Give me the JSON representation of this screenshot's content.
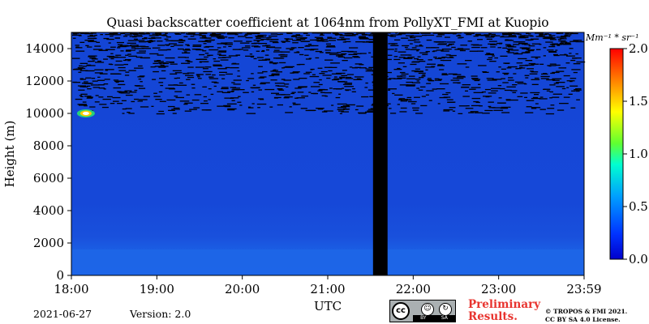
{
  "chart_data": {
    "type": "heatmap",
    "title": "Quasi backscatter coefficient at 1064nm from PollyXT_FMI at Kuopio",
    "xlabel": "UTC",
    "ylabel": "Height (m)",
    "x_ticks": [
      "18:00",
      "19:00",
      "20:00",
      "21:00",
      "22:00",
      "23:00",
      "23:59"
    ],
    "x_range_hours": [
      18.0,
      24.0
    ],
    "y_ticks": [
      0,
      2000,
      4000,
      6000,
      8000,
      10000,
      12000,
      14000
    ],
    "y_range": [
      0,
      15000
    ],
    "colorbar": {
      "unit": "Mm⁻¹ * sr⁻¹",
      "range": [
        0.0,
        2.0
      ],
      "ticks": [
        "0.0",
        "0.5",
        "1.0",
        "1.5",
        "2.0"
      ],
      "colormap": "jet"
    },
    "data_gap_hours": [
      21.53,
      21.7
    ],
    "features": {
      "boundary_layer_top_m": 1600,
      "residual_layer_top_m": 2300,
      "noise_onset_m": 10000,
      "cloud": {
        "time_hours": 18.17,
        "height_m": 10000,
        "peak_value": 2.0
      }
    },
    "background_value": 0.15,
    "grid": false
  },
  "footer": {
    "date": "2021-06-27",
    "version": "Version: 2.0",
    "preliminary": [
      "Preliminary",
      "Results."
    ],
    "copyright": [
      "© TROPOS & FMI 2021.",
      "CC BY SA 4.0 License."
    ],
    "license_badge": {
      "cc": "cc",
      "by": "BY",
      "sa": "SA"
    }
  },
  "colors": {
    "background": "#1447d6",
    "boundary_layer": "#1d63e6",
    "residual_layer": "#1a56df",
    "noise": "#000000",
    "data_gap": "#000000",
    "preliminary_text": "#e8342f"
  }
}
